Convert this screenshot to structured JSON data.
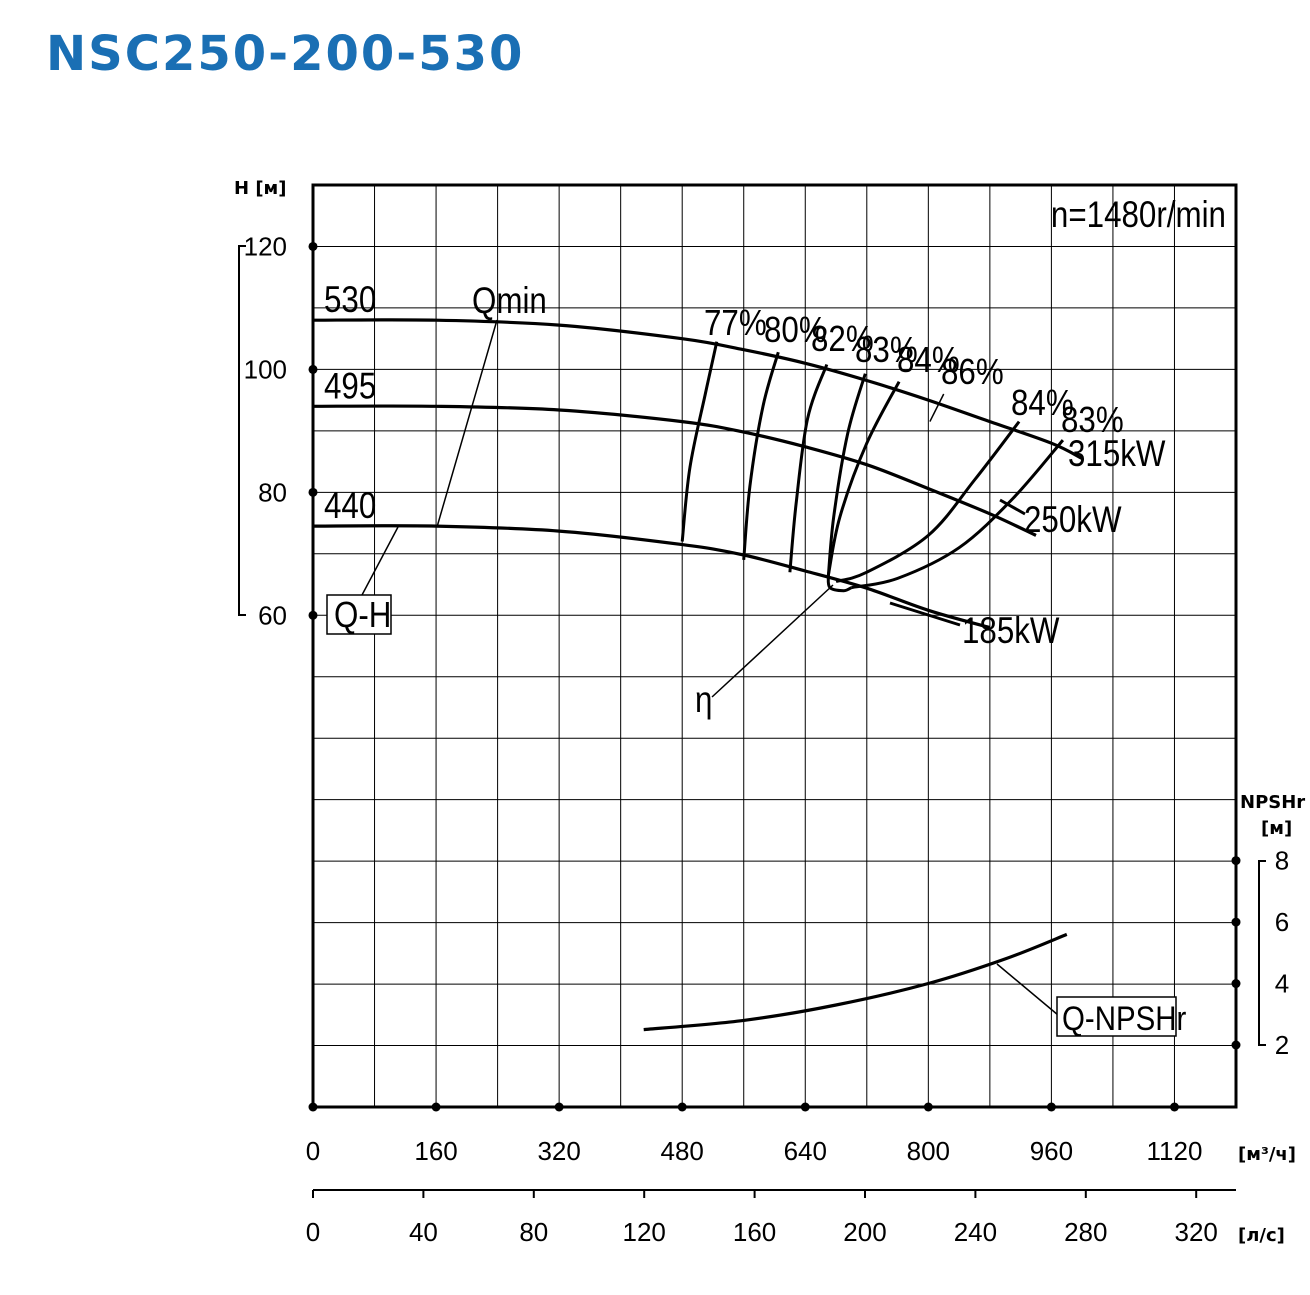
{
  "title": "NSC250-200-530",
  "chart_data": {
    "type": "line",
    "speed_label": "n=1480r/min",
    "grid": true,
    "x_axis_primary": {
      "unit": "[м³/ч]",
      "ticks": [
        "0",
        "160",
        "320",
        "480",
        "640",
        "800",
        "960",
        "1120"
      ],
      "range": [
        0,
        1200
      ]
    },
    "x_axis_secondary": {
      "unit": "[л/с]",
      "ticks": [
        "0",
        "40",
        "80",
        "120",
        "160",
        "200",
        "240",
        "280",
        "320"
      ],
      "range": [
        0,
        333.3
      ]
    },
    "y_axis_head": {
      "label": "H [м]",
      "ticks": [
        "120",
        "100",
        "80",
        "60"
      ],
      "range": [
        -20,
        130
      ]
    },
    "y_axis_npsh": {
      "label_line1": "NPSHr",
      "label_line2": "[м]",
      "ticks": [
        "8",
        "6",
        "4",
        "2"
      ],
      "range": [
        2,
        8
      ]
    },
    "head_curves": [
      {
        "name": "530",
        "x": [
          0,
          160,
          320,
          480,
          560,
          640,
          720,
          800,
          880,
          960,
          1000
        ],
        "y": [
          108,
          108,
          107.2,
          105,
          103.2,
          101,
          98.2,
          95,
          91.5,
          88,
          85.5
        ]
      },
      {
        "name": "495",
        "x": [
          0,
          160,
          320,
          480,
          560,
          640,
          720,
          800,
          880,
          940
        ],
        "y": [
          94,
          94,
          93.4,
          91.5,
          89.8,
          87.4,
          84.5,
          80.6,
          76.5,
          73
        ]
      },
      {
        "name": "440",
        "x": [
          0,
          160,
          320,
          480,
          560,
          640,
          720,
          800,
          880
        ],
        "y": [
          74.5,
          74.5,
          73.7,
          71.5,
          69.8,
          67.2,
          64.4,
          60.8,
          58
        ]
      }
    ],
    "efficiency_contours": [
      {
        "name": "77%",
        "x": [
          480,
          490,
          510,
          525
        ],
        "y": [
          72,
          84,
          96,
          104.5
        ]
      },
      {
        "name": "80%",
        "x": [
          560,
          568,
          585,
          605
        ],
        "y": [
          69,
          81,
          94,
          102.8
        ]
      },
      {
        "name": "82%",
        "x": [
          620,
          628,
          643,
          668
        ],
        "y": [
          67,
          78,
          92,
          100.8
        ]
      },
      {
        "name": "83%",
        "x": [
          670,
          677,
          695,
          718
        ],
        "y": [
          66.3,
          76,
          89.5,
          99.3
        ]
      },
      {
        "name": "84%",
        "x": [
          670,
          685,
          720,
          762
        ],
        "y": [
          66.5,
          76,
          88,
          98
        ]
      },
      {
        "name": "86%",
        "x": [
          802,
          820
        ],
        "y": [
          91.5,
          96
        ]
      },
      {
        "name": "84%",
        "x": [
          680,
          720,
          800,
          860,
          918
        ],
        "y": [
          65.5,
          67,
          73,
          82,
          91.5
        ]
      },
      {
        "name": "83%",
        "x": [
          700,
          760,
          840,
          910,
          975
        ],
        "y": [
          64.5,
          66,
          71,
          79,
          88.5
        ]
      }
    ],
    "power_labels": [
      "315kW",
      "250kW",
      "185kW"
    ],
    "qmin_label": "Qmin",
    "eta_label": "η",
    "qh_label": "Q-H",
    "npsh_curve": {
      "name": "Q-NPSHr",
      "x": [
        430,
        560,
        680,
        800,
        900,
        980
      ],
      "y": [
        2.5,
        2.8,
        3.3,
        4.0,
        4.8,
        5.6
      ]
    }
  }
}
